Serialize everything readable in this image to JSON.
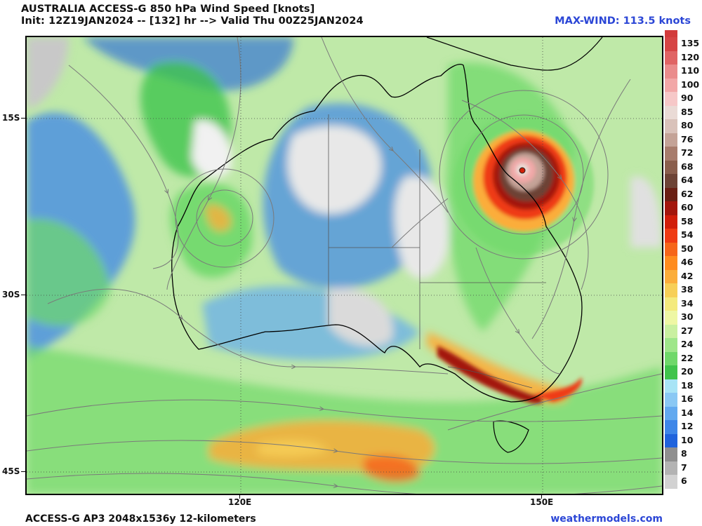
{
  "header": {
    "title": "AUSTRALIA ACCESS-G 850 hPa Wind Speed [knots]",
    "subtitle": "Init: 12Z19JAN2024 -- [132] hr --> Valid Thu 00Z25JAN2024",
    "max_wind": "MAX-WIND: 113.5 knots"
  },
  "axes": {
    "lat_labels": [
      "15S",
      "30S",
      "45S"
    ],
    "lon_labels": [
      "120E",
      "150E"
    ]
  },
  "footer": {
    "model_info": "ACCESS-G AP3 2048x1536y 12-kilometers",
    "source": "weathermodels.com"
  },
  "colorbar": {
    "labels": [
      "135",
      "120",
      "110",
      "100",
      "90",
      "85",
      "80",
      "76",
      "72",
      "68",
      "64",
      "62",
      "60",
      "58",
      "54",
      "50",
      "46",
      "42",
      "38",
      "34",
      "30",
      "27",
      "24",
      "22",
      "20",
      "18",
      "16",
      "14",
      "12",
      "10",
      "8",
      "7",
      "6"
    ],
    "colors": [
      "#d64545",
      "#e06464",
      "#ea8c8c",
      "#f2a8a8",
      "#f6c8c8",
      "#eadbd6",
      "#d9c2ba",
      "#c4a397",
      "#a77c6c",
      "#8a5e4d",
      "#6d4336",
      "#6a1f14",
      "#a3160c",
      "#d11e0a",
      "#ef3b13",
      "#f6661a",
      "#ff8c1f",
      "#fbad3a",
      "#f7cf57",
      "#f4ea7d",
      "#eef7a4",
      "#c9f0a0",
      "#9ee68a",
      "#6fd86a",
      "#40c44c",
      "#a8e4f6",
      "#8ac8f4",
      "#62a9ef",
      "#3e86e8",
      "#2063dc",
      "#8f8f8f",
      "#b3b3b3",
      "#d2d2d2"
    ],
    "top_color": "#d23b3b"
  }
}
